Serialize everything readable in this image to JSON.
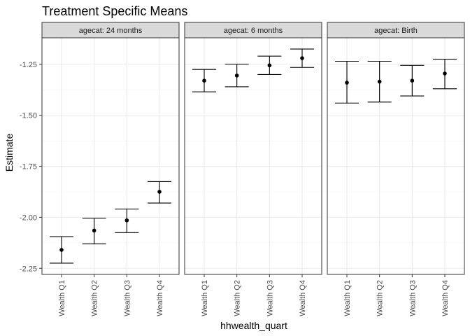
{
  "chart_data": {
    "type": "errorbar",
    "title": "Treatment Specific Means",
    "xlabel": "hhwealth_quart",
    "ylabel": "Estimate",
    "categories": [
      "Wealth Q1",
      "Wealth Q2",
      "Wealth Q3",
      "Wealth Q4"
    ],
    "ylim": [
      -2.28,
      -1.12
    ],
    "yticks": [
      -2.25,
      -2.0,
      -1.75,
      -1.5,
      -1.25
    ],
    "ytick_labels": [
      "-2.25",
      "-2.00",
      "-1.75",
      "-1.50",
      "-1.25"
    ],
    "grid": true,
    "facets": [
      {
        "label": "agecat: 24 months",
        "points": [
          {
            "x": "Wealth Q1",
            "estimate": -2.16,
            "lower": -2.225,
            "upper": -2.095
          },
          {
            "x": "Wealth Q2",
            "estimate": -2.065,
            "lower": -2.13,
            "upper": -2.005
          },
          {
            "x": "Wealth Q3",
            "estimate": -2.015,
            "lower": -2.075,
            "upper": -1.96
          },
          {
            "x": "Wealth Q4",
            "estimate": -1.875,
            "lower": -1.93,
            "upper": -1.825
          }
        ]
      },
      {
        "label": "agecat: 6 months",
        "points": [
          {
            "x": "Wealth Q1",
            "estimate": -1.33,
            "lower": -1.385,
            "upper": -1.275
          },
          {
            "x": "Wealth Q2",
            "estimate": -1.305,
            "lower": -1.36,
            "upper": -1.25
          },
          {
            "x": "Wealth Q3",
            "estimate": -1.255,
            "lower": -1.3,
            "upper": -1.21
          },
          {
            "x": "Wealth Q4",
            "estimate": -1.22,
            "lower": -1.265,
            "upper": -1.175
          }
        ]
      },
      {
        "label": "agecat: Birth",
        "points": [
          {
            "x": "Wealth Q1",
            "estimate": -1.34,
            "lower": -1.44,
            "upper": -1.235
          },
          {
            "x": "Wealth Q2",
            "estimate": -1.335,
            "lower": -1.435,
            "upper": -1.235
          },
          {
            "x": "Wealth Q3",
            "estimate": -1.33,
            "lower": -1.405,
            "upper": -1.255
          },
          {
            "x": "Wealth Q4",
            "estimate": -1.295,
            "lower": -1.37,
            "upper": -1.225
          }
        ]
      }
    ]
  }
}
